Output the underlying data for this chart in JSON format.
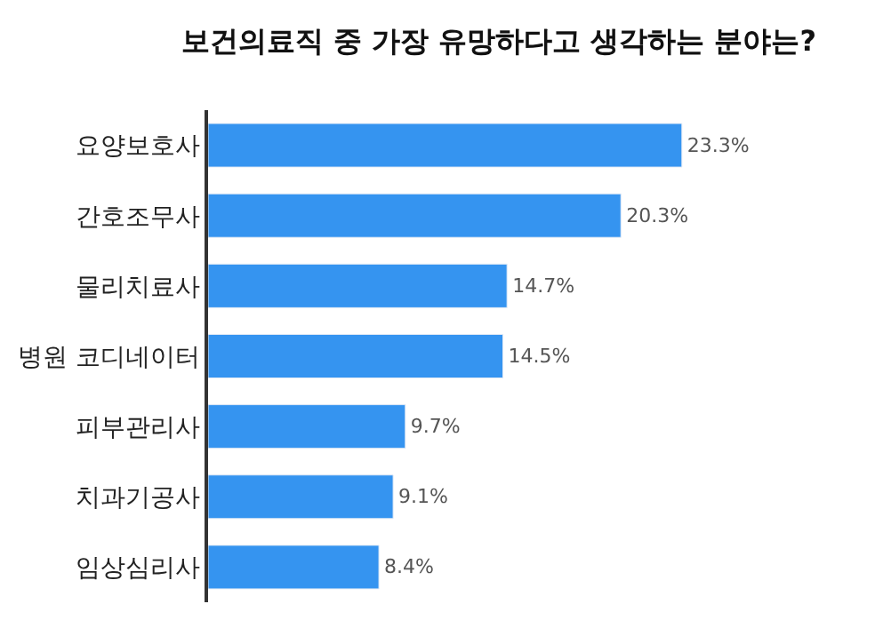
{
  "chart_data": {
    "type": "bar",
    "orientation": "horizontal",
    "title": "보건의료직 중 가장 유망하다고 생각하는 분야는?",
    "categories": [
      "요양보호사",
      "간호조무사",
      "물리치료사",
      "병원 코디네이터",
      "피부관리사",
      "치과기공사",
      "임상심리사"
    ],
    "values": [
      23.3,
      20.3,
      14.7,
      14.5,
      9.7,
      9.1,
      8.4
    ],
    "value_labels": [
      "23.3%",
      "20.3%",
      "14.7%",
      "14.5%",
      "9.7%",
      "9.1%",
      "8.4%"
    ],
    "color": "#3594f0"
  }
}
